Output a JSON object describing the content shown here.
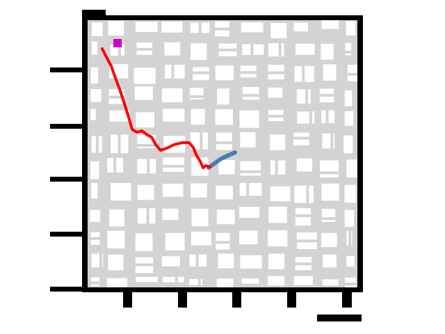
{
  "chart_data": {
    "type": "line",
    "title": "",
    "xlabel": "",
    "ylabel": "",
    "grid": false,
    "series": [
      {
        "role": "planned-route",
        "color": "#4a7ab5",
        "x": [
          300,
          318,
          338
        ],
        "y": [
          241,
          228,
          219
        ]
      },
      {
        "role": "driven-path",
        "color": "#ff0000",
        "x": [
          147,
          152,
          160,
          166,
          172,
          178,
          184,
          190,
          197,
          204,
          212,
          218,
          224,
          231,
          240,
          250,
          262,
          272,
          278,
          282,
          288,
          292,
          296,
          302
        ],
        "y": [
          70,
          80,
          95,
          112,
          128,
          146,
          165,
          186,
          190,
          188,
          194,
          197,
          208,
          216,
          213,
          208,
          205,
          205,
          212,
          222,
          232,
          241,
          238,
          240
        ]
      }
    ],
    "markers": [
      {
        "role": "goal",
        "color": "#cc00cc",
        "x": 169,
        "y": 62
      }
    ],
    "road_color": "#d3d3d3",
    "frame_color": "#000000"
  }
}
